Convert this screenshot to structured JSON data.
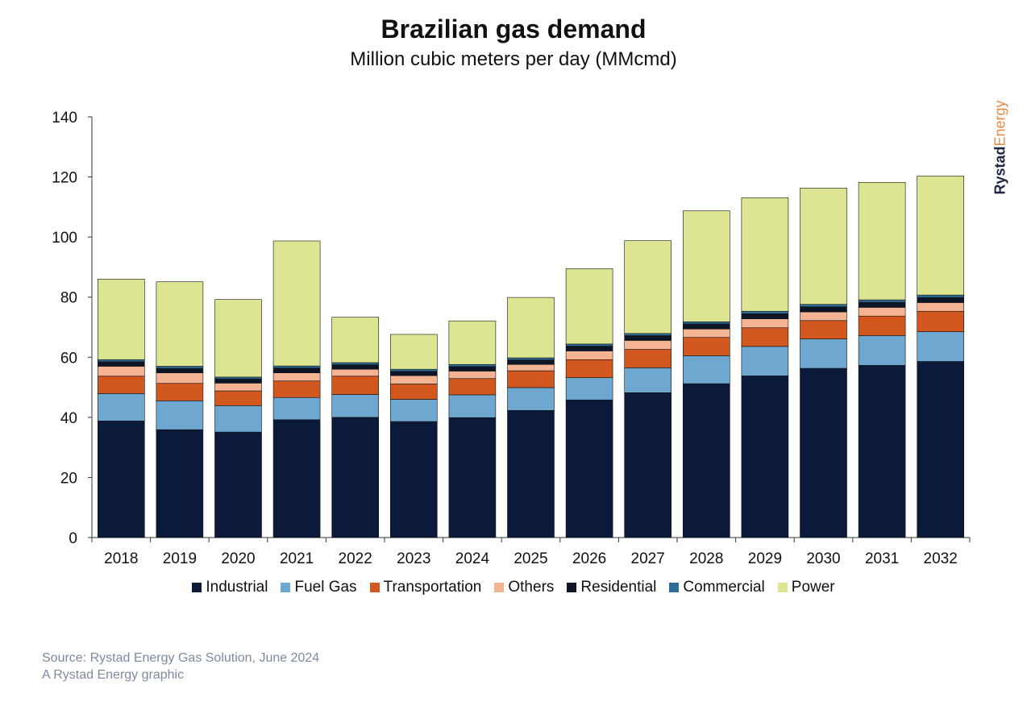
{
  "title": "Brazilian gas demand",
  "subtitle": "Million cubic meters per day (MMcmd)",
  "brand": {
    "part1": "Rystad",
    "part2": "Energy"
  },
  "source_lines": [
    "Source: Rystad Energy Gas Solution, June 2024",
    "A Rystad Energy graphic"
  ],
  "chart_data": {
    "type": "bar",
    "stacked": true,
    "title": "Brazilian gas demand",
    "subtitle": "Million cubic meters per day (MMcmd)",
    "xlabel": "",
    "ylabel": "",
    "ylim": [
      0,
      140
    ],
    "yticks": [
      0,
      20,
      40,
      60,
      80,
      100,
      120,
      140
    ],
    "grid": false,
    "legend": "bottom",
    "categories": [
      "2018",
      "2019",
      "2020",
      "2021",
      "2022",
      "2023",
      "2024",
      "2025",
      "2026",
      "2027",
      "2028",
      "2029",
      "2030",
      "2031",
      "2032"
    ],
    "series": [
      {
        "name": "Industrial",
        "color": "#0b1a3a",
        "values": [
          38.8,
          35.9,
          35.1,
          39.2,
          40.0,
          38.6,
          39.9,
          42.3,
          45.8,
          48.2,
          51.2,
          53.8,
          56.3,
          57.3,
          58.6
        ]
      },
      {
        "name": "Fuel Gas",
        "color": "#6ea7cf",
        "values": [
          9.1,
          9.6,
          8.8,
          7.4,
          7.6,
          7.4,
          7.6,
          7.6,
          7.4,
          8.3,
          9.3,
          9.8,
          9.8,
          9.9,
          9.9
        ]
      },
      {
        "name": "Transportation",
        "color": "#d2581f",
        "values": [
          5.8,
          5.8,
          4.9,
          5.5,
          6.1,
          5.1,
          5.4,
          5.6,
          6.0,
          6.1,
          6.1,
          6.2,
          6.1,
          6.5,
          6.8
        ]
      },
      {
        "name": "Others",
        "color": "#f4b393",
        "values": [
          3.3,
          3.5,
          2.6,
          2.7,
          2.3,
          2.8,
          2.5,
          2.1,
          2.9,
          3.0,
          2.8,
          3.0,
          2.9,
          2.9,
          2.9
        ]
      },
      {
        "name": "Residential",
        "color": "#0d1527",
        "values": [
          1.5,
          1.5,
          1.4,
          1.6,
          1.5,
          1.4,
          1.5,
          1.5,
          1.6,
          1.6,
          1.7,
          1.7,
          1.7,
          1.7,
          1.7
        ]
      },
      {
        "name": "Commercial",
        "color": "#2e6e96",
        "values": [
          0.7,
          0.7,
          0.6,
          0.7,
          0.7,
          0.7,
          0.7,
          0.7,
          0.7,
          0.7,
          0.7,
          0.8,
          0.8,
          0.8,
          0.8
        ]
      },
      {
        "name": "Power",
        "color": "#dde592",
        "values": [
          26.8,
          28.1,
          25.8,
          41.6,
          15.1,
          11.6,
          14.5,
          20.1,
          25.1,
          30.9,
          36.9,
          37.8,
          38.7,
          39.1,
          39.6
        ]
      }
    ]
  }
}
